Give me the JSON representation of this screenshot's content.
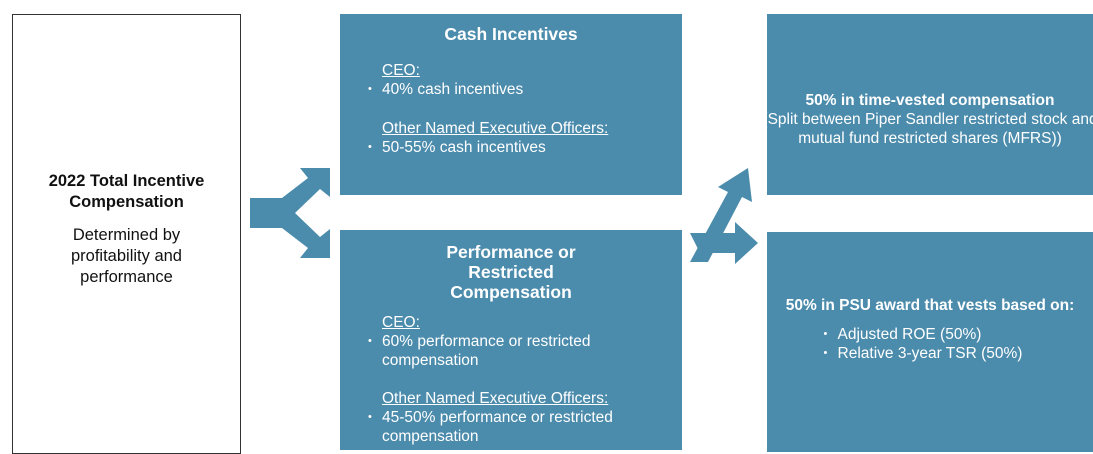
{
  "left": {
    "title": "2022 Total Incentive Compensation",
    "body": "Determined by profitability and performance"
  },
  "cash": {
    "title": "Cash Incentives",
    "groups": [
      {
        "label": "CEO:",
        "items": [
          "40% cash incentives"
        ]
      },
      {
        "label": "Other Named Executive Officers:",
        "items": [
          "50-55% cash incentives"
        ]
      }
    ]
  },
  "performance": {
    "title": "Performance or Restricted Compensation",
    "groups": [
      {
        "label": "CEO:",
        "items": [
          "60% performance or restricted compensation"
        ]
      },
      {
        "label": "Other Named Executive Officers:",
        "items": [
          "45-50% performance or restricted compensation"
        ]
      }
    ]
  },
  "time_vested": {
    "title": "50% in time-vested compensation",
    "body": "(Split between Piper Sandler restricted stock and mutual fund restricted shares (MFRS))"
  },
  "psu": {
    "title": "50% in PSU award that vests based on:",
    "items": [
      "Adjusted ROE (50%)",
      "Relative 3-year TSR (50%)"
    ]
  }
}
